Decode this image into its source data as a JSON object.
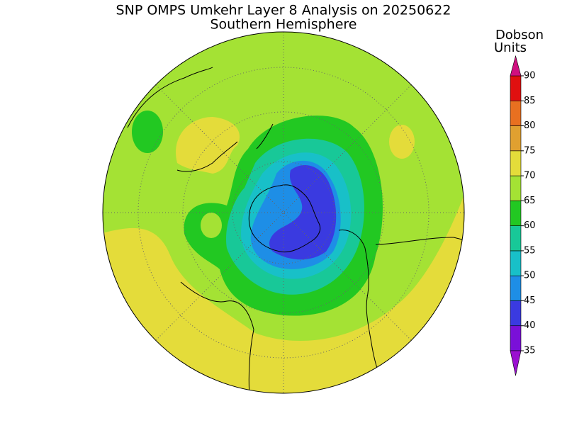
{
  "title": "SNP OMPS Umkehr Layer 8 Analysis on 20250622",
  "subtitle": "Southern Hemisphere",
  "colorbar": {
    "label_lines": [
      "Dobson",
      "Units"
    ],
    "ticks": [
      35,
      40,
      45,
      50,
      55,
      60,
      65,
      70,
      75,
      80,
      85,
      90
    ],
    "colors": [
      "#7a10d8",
      "#3a3ae0",
      "#1e8ee6",
      "#18c0c8",
      "#18c898",
      "#22c822",
      "#a4e234",
      "#e4dc3a",
      "#e0a030",
      "#e87020",
      "#e01010"
    ],
    "under_color": "#9a10d0",
    "over_color": "#d01080"
  }
}
